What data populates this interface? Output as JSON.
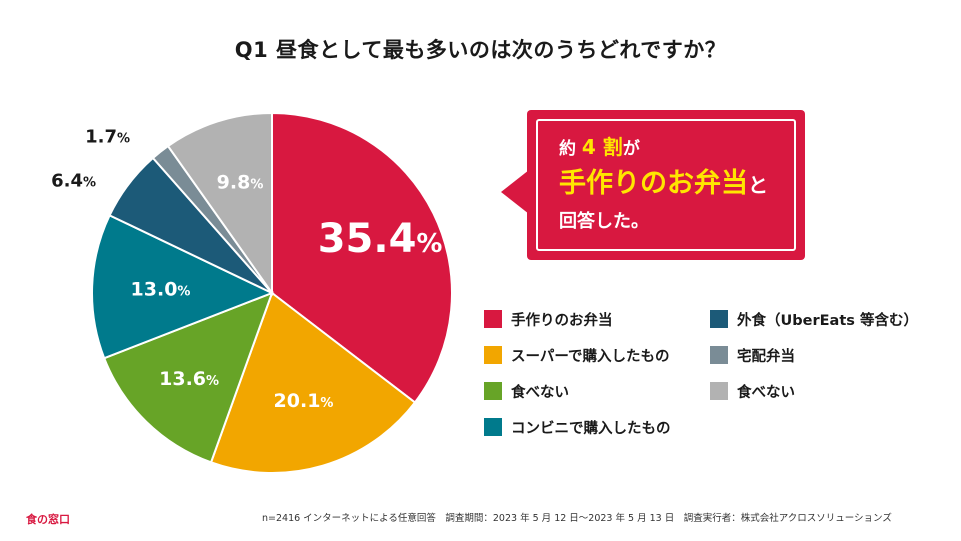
{
  "title": "Q1 昼食として最も多いのは次のうちどれですか？",
  "chart_data": {
    "type": "pie",
    "start_angle_deg": 0,
    "direction": "clockwise",
    "slices": [
      {
        "label": "手作りのお弁当",
        "value": 35.4,
        "display": "35.4",
        "unit": "%",
        "color": "#d81840",
        "label_color": "#ffffff",
        "label_placement": "inside"
      },
      {
        "label": "スーパーで購入したもの",
        "value": 20.1,
        "display": "20.1",
        "unit": "%",
        "color": "#f2a600",
        "label_color": "#ffffff",
        "label_placement": "inside"
      },
      {
        "label": "食べない",
        "value": 13.6,
        "display": "13.6",
        "unit": "%",
        "color": "#67a427",
        "label_color": "#ffffff",
        "label_placement": "inside"
      },
      {
        "label": "コンビニで購入したもの",
        "value": 13.0,
        "display": "13.0",
        "unit": "%",
        "color": "#007a8c",
        "label_color": "#ffffff",
        "label_placement": "inside"
      },
      {
        "label": "外食（UberEats 等含む）",
        "value": 6.4,
        "display": "6.4",
        "unit": "%",
        "color": "#1c5a78",
        "label_color": "#1a1a1a",
        "label_placement": "outside"
      },
      {
        "label": "宅配弁当",
        "value": 1.7,
        "display": "1.7",
        "unit": "%",
        "color": "#7a8c96",
        "label_color": "#1a1a1a",
        "label_placement": "outside"
      },
      {
        "label": "食べない",
        "value": 9.8,
        "display": "9.8",
        "unit": "%",
        "color": "#b2b2b2",
        "label_color": "#ffffff",
        "label_placement": "inside"
      }
    ]
  },
  "callout": {
    "line1_pre": "約 ",
    "line1_highlight": "4 割",
    "line1_post": "が",
    "line2_highlight": "手作りのお弁当",
    "line2_post": "と",
    "line3": "回答した。"
  },
  "legend": [
    {
      "label": "手作りのお弁当",
      "color": "#d81840"
    },
    {
      "label": "スーパーで購入したもの",
      "color": "#f2a600"
    },
    {
      "label": "食べない",
      "color": "#67a427"
    },
    {
      "label": "コンビニで購入したもの",
      "color": "#007a8c"
    },
    {
      "label": "外食（UberEats 等含む）",
      "color": "#1c5a78"
    },
    {
      "label": "宅配弁当",
      "color": "#7a8c96"
    },
    {
      "label": "食べない",
      "color": "#b2b2b2"
    }
  ],
  "brand": "食の窓口",
  "footnote": "n=2416 インターネットによる任意回答　調査期間：2023 年 5 月 12 日〜2023 年 5 月 13 日　調査実行者：株式会社アクロスソリューションズ"
}
